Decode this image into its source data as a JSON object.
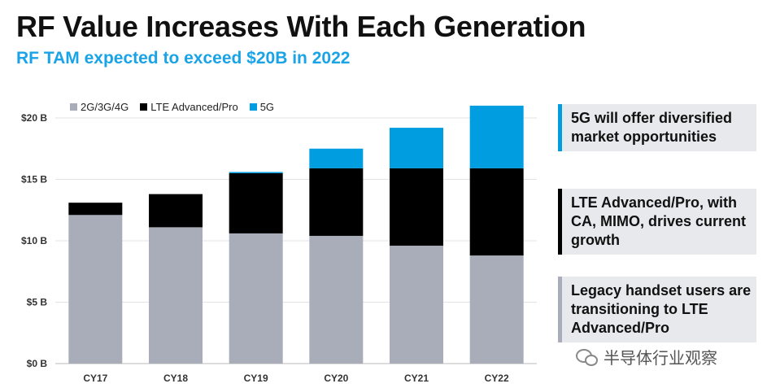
{
  "header": {
    "title": "RF Value Increases With Each Generation",
    "subtitle": "RF TAM expected to exceed $20B in 2022"
  },
  "colors": {
    "legacy": "#a9adb9",
    "lte": "#000000",
    "fiveg": "#009ee0",
    "accent": "#1aa3e6",
    "callout_bg": "#e8e9ec"
  },
  "chart_data": {
    "type": "bar",
    "stacked": true,
    "categories": [
      "CY17",
      "CY18",
      "CY19",
      "CY20",
      "CY21",
      "CY22"
    ],
    "series": [
      {
        "name": "2G/3G/4G",
        "values": [
          12.1,
          11.1,
          10.6,
          10.4,
          9.6,
          8.8
        ]
      },
      {
        "name": "LTE Advanced/Pro",
        "values": [
          1.0,
          2.7,
          4.9,
          5.5,
          6.3,
          7.1
        ]
      },
      {
        "name": "5G",
        "values": [
          0,
          0,
          0.1,
          1.6,
          3.3,
          5.1
        ]
      }
    ],
    "ylim": [
      0,
      21
    ],
    "yticks": [
      "$0 B",
      "$5 B",
      "$10 B",
      "$15 B",
      "$20 B"
    ],
    "ytick_values": [
      0,
      5,
      10,
      15,
      20
    ],
    "grid": true,
    "legend_position": "top-left"
  },
  "callouts": [
    {
      "text": "5G will offer diversified market opportunities",
      "accent": "#009ee0"
    },
    {
      "text": "LTE Advanced/Pro, with CA, MIMO, drives current growth",
      "accent": "#000000"
    },
    {
      "text": "Legacy handset users are transitioning to LTE Advanced/Pro",
      "accent": "#a9adb9"
    }
  ],
  "watermark": {
    "text": "半导体行业观察",
    "icon": "wechat-icon"
  }
}
